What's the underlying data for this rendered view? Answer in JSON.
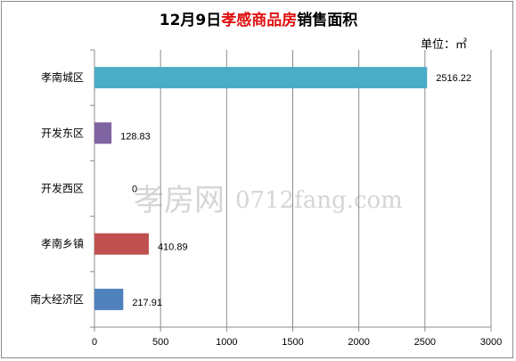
{
  "title": {
    "prefix": "12月9日",
    "highlight": "孝感商品房",
    "suffix": "销售面积"
  },
  "unit_label": "单位：㎡",
  "watermark": {
    "logo_text": "孝房网",
    "site_text": "0712fang.com"
  },
  "chart_data": {
    "type": "bar",
    "orientation": "horizontal",
    "categories": [
      "孝南城区",
      "开发东区",
      "开发西区",
      "孝南乡镇",
      "南大经济区"
    ],
    "values": [
      2516.22,
      128.83,
      0,
      410.89,
      217.91
    ],
    "value_labels": [
      "2516.22",
      "128.83",
      "0",
      "410.89",
      "217.91"
    ],
    "colors": [
      "#4bacc6",
      "#8064a2",
      "#9bbb59",
      "#c0504d",
      "#4f81bd"
    ],
    "xlim": [
      0,
      3000
    ],
    "xticks": [
      "0",
      "500",
      "1000",
      "1500",
      "2000",
      "2500",
      "3000"
    ],
    "grid": true
  }
}
